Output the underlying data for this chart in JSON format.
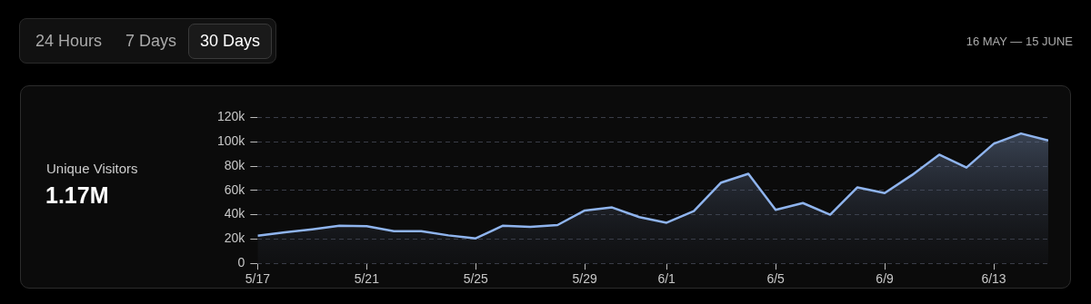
{
  "chart_data": {
    "type": "area",
    "title": "Unique Visitors",
    "subtitle": "1.17M",
    "annotations": [
      "24 Hours",
      "7 Days",
      "30 Days",
      "16 MAY — 15 JUNE"
    ],
    "x": [
      "--05-17",
      "--05-18",
      "--05-19",
      "--05-20",
      "--05-21",
      "--05-22",
      "--05-23",
      "--05-24",
      "--05-25",
      "--05-26",
      "--05-27",
      "--05-28",
      "--05-29",
      "--05-30",
      "--05-31",
      "--06-01",
      "--06-02",
      "--06-03",
      "--06-04",
      "--06-05",
      "--06-06",
      "--06-07",
      "--06-08",
      "--06-09",
      "--06-10",
      "--06-11",
      "--06-12",
      "--06-13",
      "--06-14",
      "--06-15"
    ],
    "values": [
      22700,
      25500,
      28000,
      31000,
      30500,
      26500,
      26500,
      23000,
      20500,
      31000,
      30000,
      31500,
      43500,
      46000,
      38000,
      33400,
      43000,
      66400,
      73700,
      44000,
      49600,
      40000,
      62500,
      57800,
      72600,
      89400,
      78800,
      98400,
      106800,
      101000
    ],
    "color": "#8fb4ee",
    "xlim": [
      "--05-17",
      "--06-15"
    ],
    "xticks": [
      {
        "value": "--05-17",
        "label": "5/17"
      },
      {
        "value": "--05-21",
        "label": "5/21"
      },
      {
        "value": "--05-25",
        "label": "5/25"
      },
      {
        "value": "--05-29",
        "label": "5/29"
      },
      {
        "value": "--06-01",
        "label": "6/1"
      },
      {
        "value": "--06-05",
        "label": "6/5"
      },
      {
        "value": "--06-09",
        "label": "6/9"
      },
      {
        "value": "--06-13",
        "label": "6/13"
      }
    ],
    "ylim": [
      0,
      120000
    ],
    "yticks": [
      0,
      {
        "value": 20000,
        "label": "20k"
      },
      {
        "value": 40000,
        "label": "40k"
      },
      {
        "value": 60000,
        "label": "60k"
      },
      {
        "value": 80000,
        "label": "80k"
      },
      {
        "value": 100000,
        "label": "100k"
      },
      {
        "value": 120000,
        "label": "120k"
      }
    ],
    "grid": "y",
    "marker": "none"
  }
}
